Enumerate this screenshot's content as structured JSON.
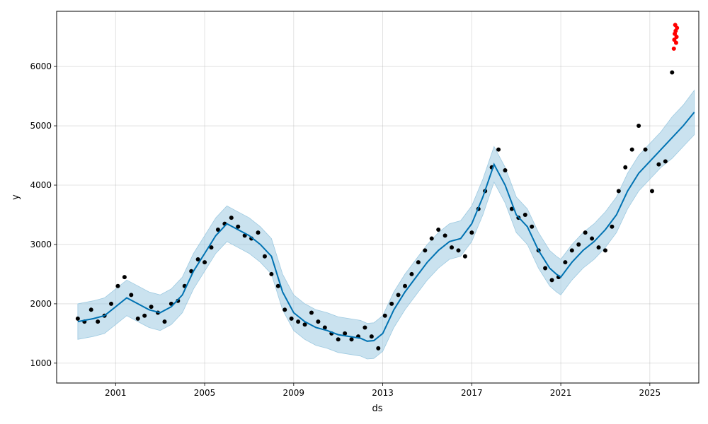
{
  "chart_data": {
    "type": "scatter",
    "title": "",
    "xlabel": "ds",
    "ylabel": "y",
    "xlim": [
      1998.35,
      2027.2
    ],
    "ylim": [
      665,
      6930
    ],
    "grid": true,
    "x_ticks": [
      {
        "label": "2001",
        "value": 2001
      },
      {
        "label": "2005",
        "value": 2005
      },
      {
        "label": "2009",
        "value": 2009
      },
      {
        "label": "2013",
        "value": 2013
      },
      {
        "label": "2017",
        "value": 2017
      },
      {
        "label": "2021",
        "value": 2021
      },
      {
        "label": "2025",
        "value": 2025
      }
    ],
    "y_ticks": [
      {
        "label": "1000",
        "value": 1000
      },
      {
        "label": "2000",
        "value": 2000
      },
      {
        "label": "3000",
        "value": 3000
      },
      {
        "label": "4000",
        "value": 4000
      },
      {
        "label": "5000",
        "value": 5000
      },
      {
        "label": "6000",
        "value": 6000
      }
    ],
    "colors": {
      "observed": "#000000",
      "forecast": "#0072B2",
      "interval": "#9ecae1",
      "outliers": "#ff0000"
    },
    "series": [
      {
        "type": "scatter",
        "x": [
          1999.3,
          1999.6,
          1999.9,
          2000.2,
          2000.5,
          2000.8,
          2001.1,
          2001.4,
          2001.7,
          2002.0,
          2002.3,
          2002.6,
          2002.9,
          2003.2,
          2003.5,
          2003.8,
          2004.1,
          2004.4,
          2004.7,
          2005.0,
          2005.3,
          2005.6,
          2005.9,
          2006.2,
          2006.5,
          2006.8,
          2007.1,
          2007.4,
          2007.7,
          2008.0,
          2008.3,
          2008.6,
          2008.9,
          2009.2,
          2009.5,
          2009.8,
          2010.1,
          2010.4,
          2010.7,
          2011.0,
          2011.3,
          2011.6,
          2011.9,
          2012.2,
          2012.5,
          2012.8,
          2013.1,
          2013.4,
          2013.7,
          2014.0,
          2014.3,
          2014.6,
          2014.9,
          2015.2,
          2015.5,
          2015.8,
          2016.1,
          2016.4,
          2016.7,
          2017.0,
          2017.3,
          2017.6,
          2017.9,
          2018.2,
          2018.5,
          2018.8,
          2019.1,
          2019.4,
          2019.7,
          2020.0,
          2020.3,
          2020.6,
          2020.9,
          2021.2,
          2021.5,
          2021.8,
          2022.1,
          2022.4,
          2022.7,
          2023.0,
          2023.3,
          2023.6,
          2023.9,
          2024.2,
          2024.5,
          2024.8,
          2025.1,
          2025.4,
          2025.7,
          2026.0
        ],
        "y": [
          1750,
          1700,
          1900,
          1700,
          1800,
          2000,
          2300,
          2450,
          2150,
          1750,
          1800,
          1950,
          1850,
          1700,
          2000,
          2050,
          2300,
          2550,
          2750,
          2700,
          2950,
          3250,
          3350,
          3450,
          3300,
          3150,
          3100,
          3200,
          2800,
          2500,
          2300,
          1900,
          1750,
          1700,
          1650,
          1850,
          1700,
          1600,
          1500,
          1400,
          1500,
          1400,
          1450,
          1600,
          1450,
          1250,
          1800,
          2000,
          2150,
          2300,
          2500,
          2700,
          2900,
          3100,
          3250,
          3150,
          2950,
          2900,
          2800,
          3200,
          3600,
          3900,
          4300,
          4600,
          4250,
          3600,
          3450,
          3500,
          3300,
          2900,
          2600,
          2400,
          2450,
          2700,
          2900,
          3000,
          3200,
          3100,
          2950,
          2900,
          3300,
          3900,
          4300,
          4600,
          5000,
          4600,
          3900,
          4350,
          4400,
          5900
        ]
      },
      {
        "type": "scatter",
        "x": [
          2026.08,
          2026.1,
          2026.12,
          2026.14,
          2026.16,
          2026.18,
          2026.2,
          2026.22
        ],
        "y": [
          6300,
          6450,
          6550,
          6700,
          6600,
          6400,
          6500,
          6650
        ]
      },
      {
        "type": "line",
        "x": [
          1999.3,
          2000.0,
          2000.5,
          2001.0,
          2001.5,
          2002.0,
          2002.5,
          2003.0,
          2003.5,
          2004.0,
          2004.5,
          2005.0,
          2005.5,
          2006.0,
          2006.5,
          2007.0,
          2007.5,
          2008.0,
          2008.5,
          2009.0,
          2009.5,
          2010.0,
          2010.5,
          2011.0,
          2011.5,
          2012.0,
          2012.3,
          2012.6,
          2013.0,
          2013.5,
          2014.0,
          2014.5,
          2015.0,
          2015.5,
          2016.0,
          2016.5,
          2017.0,
          2017.5,
          2018.0,
          2018.5,
          2019.0,
          2019.5,
          2020.0,
          2020.5,
          2020.8,
          2021.0,
          2021.5,
          2022.0,
          2022.5,
          2023.0,
          2023.5,
          2024.0,
          2024.5,
          2025.0,
          2025.5,
          2026.0,
          2026.5,
          2027.0
        ],
        "y": [
          1700,
          1750,
          1800,
          1950,
          2100,
          2000,
          1900,
          1850,
          1950,
          2150,
          2550,
          2850,
          3150,
          3350,
          3250,
          3150,
          3000,
          2800,
          2200,
          1850,
          1700,
          1600,
          1550,
          1480,
          1450,
          1420,
          1370,
          1380,
          1500,
          1900,
          2200,
          2450,
          2700,
          2900,
          3050,
          3100,
          3350,
          3800,
          4350,
          4000,
          3500,
          3300,
          2900,
          2600,
          2500,
          2450,
          2700,
          2900,
          3050,
          3250,
          3500,
          3900,
          4200,
          4400,
          4600,
          4800,
          5000,
          5230
        ]
      },
      {
        "type": "area",
        "x": [
          1999.3,
          2000.0,
          2000.5,
          2001.0,
          2001.5,
          2002.0,
          2002.5,
          2003.0,
          2003.5,
          2004.0,
          2004.5,
          2005.0,
          2005.5,
          2006.0,
          2006.5,
          2007.0,
          2007.5,
          2008.0,
          2008.5,
          2009.0,
          2009.5,
          2010.0,
          2010.5,
          2011.0,
          2011.5,
          2012.0,
          2012.3,
          2012.6,
          2013.0,
          2013.5,
          2014.0,
          2014.5,
          2015.0,
          2015.5,
          2016.0,
          2016.5,
          2017.0,
          2017.5,
          2018.0,
          2018.5,
          2019.0,
          2019.5,
          2020.0,
          2020.5,
          2020.8,
          2021.0,
          2021.5,
          2022.0,
          2022.5,
          2023.0,
          2023.5,
          2024.0,
          2024.5,
          2025.0,
          2025.5,
          2026.0,
          2026.5,
          2027.0
        ],
        "upper": [
          2000,
          2050,
          2100,
          2250,
          2400,
          2300,
          2200,
          2150,
          2250,
          2450,
          2850,
          3150,
          3450,
          3650,
          3550,
          3450,
          3300,
          3100,
          2500,
          2150,
          2000,
          1900,
          1850,
          1780,
          1750,
          1720,
          1670,
          1680,
          1800,
          2200,
          2500,
          2750,
          3000,
          3200,
          3350,
          3400,
          3650,
          4100,
          4650,
          4300,
          3800,
          3600,
          3200,
          2900,
          2800,
          2750,
          3000,
          3200,
          3350,
          3550,
          3800,
          4200,
          4500,
          4700,
          4900,
          5150,
          5350,
          5600
        ],
        "lower": [
          1400,
          1450,
          1500,
          1650,
          1800,
          1700,
          1600,
          1550,
          1650,
          1850,
          2250,
          2550,
          2850,
          3050,
          2950,
          2850,
          2700,
          2500,
          1900,
          1550,
          1400,
          1300,
          1250,
          1180,
          1150,
          1120,
          1070,
          1080,
          1200,
          1600,
          1900,
          2150,
          2400,
          2600,
          2750,
          2800,
          3050,
          3500,
          4050,
          3700,
          3200,
          3000,
          2600,
          2300,
          2200,
          2150,
          2400,
          2600,
          2750,
          2950,
          3200,
          3600,
          3900,
          4100,
          4300,
          4450,
          4650,
          4850
        ]
      }
    ]
  }
}
